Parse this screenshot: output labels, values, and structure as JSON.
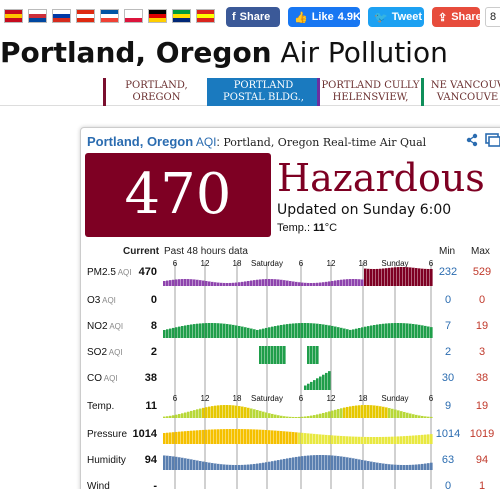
{
  "flags": [
    {
      "name": "spain-flag-icon",
      "colors": [
        "#c60b1e",
        "#ffc400",
        "#c60b1e"
      ]
    },
    {
      "name": "korea-flag-icon",
      "colors": [
        "#ffffff",
        "#cd2e3a",
        "#0047a0"
      ]
    },
    {
      "name": "russia-flag-icon",
      "colors": [
        "#ffffff",
        "#0039a6",
        "#d52b1e"
      ]
    },
    {
      "name": "hongkong-flag-icon",
      "colors": [
        "#de2910",
        "#ffffff",
        "#de2910"
      ]
    },
    {
      "name": "france-flag-icon",
      "colors": [
        "#0055a4",
        "#ffffff",
        "#ef4135"
      ]
    },
    {
      "name": "poland-flag-icon",
      "colors": [
        "#ffffff",
        "#ffffff",
        "#dc143c"
      ]
    },
    {
      "name": "germany-flag-icon",
      "colors": [
        "#000000",
        "#dd0000",
        "#ffce00"
      ]
    },
    {
      "name": "brazil-flag-icon",
      "colors": [
        "#009c3b",
        "#ffdf00",
        "#002776"
      ]
    },
    {
      "name": "vietnam-flag-icon",
      "colors": [
        "#da251d",
        "#ffff00",
        "#da251d"
      ]
    }
  ],
  "social": {
    "fb_share": "Share",
    "fb_like": "Like",
    "fb_like_count": "4.9K",
    "tweet": "Tweet",
    "share": "Share",
    "count": "8"
  },
  "title": {
    "bold": "Portland, Oregon",
    "rest": " Air Pollution"
  },
  "stations": [
    {
      "line1": "PORTLAND,",
      "line2": "OREGON"
    },
    {
      "line1": "PORTLAND",
      "line2": "POSTAL BLDG.,"
    },
    {
      "line1": "PORTLAND CULLY",
      "line2": "HELENSVIEW,"
    },
    {
      "line1": "NE VANCOUV",
      "line2": "VANCOUVE"
    }
  ],
  "card": {
    "city": "Portland, Oregon",
    "aqi_word": "AQI",
    "colon": ":",
    "desc": " Portland, Oregon Real-time Air Qual",
    "aqi_value": "470",
    "aqi_color": "#7e0023",
    "level": "Hazardous",
    "updated": "Updated on Sunday 6:00",
    "temp_label": "Temp.: ",
    "temp_value": "11",
    "temp_unit": "°C"
  },
  "table": {
    "col_current": "Current",
    "col_past": "Past 48 hours data",
    "col_min": "Min",
    "col_max": "Max",
    "tick_labels": [
      "6",
      "12",
      "18",
      "Saturday",
      "6",
      "12",
      "18",
      "Sunday",
      "6"
    ],
    "rows": [
      {
        "name": "PM2.5",
        "suffix": "AQI",
        "current": "470",
        "min": "232",
        "max": "529"
      },
      {
        "name": "O3",
        "suffix": "AQI",
        "current": "0",
        "min": "0",
        "max": "0"
      },
      {
        "name": "NO2",
        "suffix": "AQI",
        "current": "8",
        "min": "7",
        "max": "19"
      },
      {
        "name": "SO2",
        "suffix": "AQI",
        "current": "2",
        "min": "2",
        "max": "3"
      },
      {
        "name": "CO",
        "suffix": "AQI",
        "current": "38",
        "min": "30",
        "max": "38"
      },
      {
        "name": "Temp.",
        "suffix": "",
        "current": "11",
        "min": "9",
        "max": "19"
      },
      {
        "name": "Pressure",
        "suffix": "",
        "current": "1014",
        "min": "1014",
        "max": "1019"
      },
      {
        "name": "Humidity",
        "suffix": "",
        "current": "94",
        "min": "63",
        "max": "94"
      },
      {
        "name": "Wind",
        "suffix": "",
        "current": "-",
        "min": "0",
        "max": "1"
      }
    ]
  }
}
